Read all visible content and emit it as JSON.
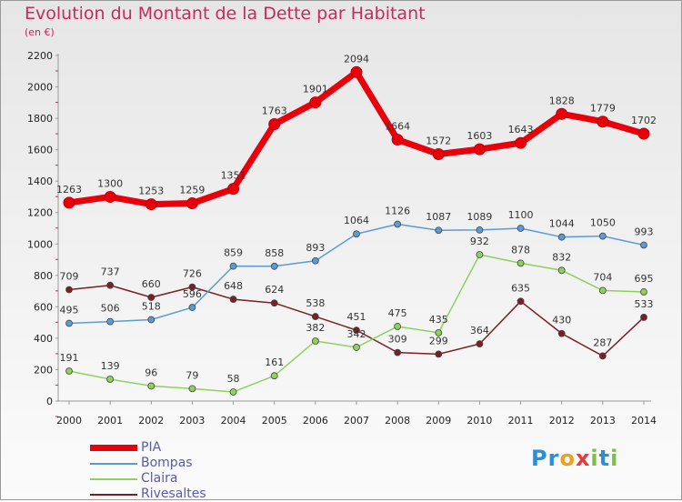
{
  "title": "Evolution du Montant de la Dette par Habitant",
  "subtitle": "(en €)",
  "logo": [
    "P",
    "r",
    "o",
    "x",
    "i",
    "t",
    "i"
  ],
  "chart_data": {
    "type": "line",
    "x": [
      "2000",
      "2001",
      "2002",
      "2003",
      "2004",
      "2005",
      "2006",
      "2007",
      "2008",
      "2009",
      "2010",
      "2011",
      "2012",
      "2013",
      "2014"
    ],
    "ylim": [
      0,
      2200
    ],
    "yticks": [
      0,
      200,
      400,
      600,
      800,
      1000,
      1200,
      1400,
      1600,
      1800,
      2000,
      2200
    ],
    "grid": false,
    "legend_position": "bottom-left",
    "series": [
      {
        "name": "PIA",
        "color": "#e8000b",
        "values": [
          1263,
          1300,
          1253,
          1259,
          1351,
          1763,
          1901,
          2094,
          1664,
          1572,
          1603,
          1643,
          1828,
          1779,
          1702
        ]
      },
      {
        "name": "Bompas",
        "color": "#5b9bd5",
        "values": [
          495,
          506,
          518,
          596,
          859,
          858,
          893,
          1064,
          1126,
          1087,
          1089,
          1100,
          1044,
          1050,
          993
        ]
      },
      {
        "name": "Claira",
        "color": "#8fd15a",
        "values": [
          191,
          139,
          96,
          79,
          58,
          161,
          382,
          342,
          475,
          435,
          932,
          878,
          832,
          704,
          695
        ]
      },
      {
        "name": "Rivesaltes",
        "color": "#7a1e28",
        "values": [
          709,
          737,
          660,
          726,
          648,
          624,
          538,
          451,
          309,
          299,
          364,
          635,
          430,
          287,
          533
        ]
      }
    ]
  }
}
